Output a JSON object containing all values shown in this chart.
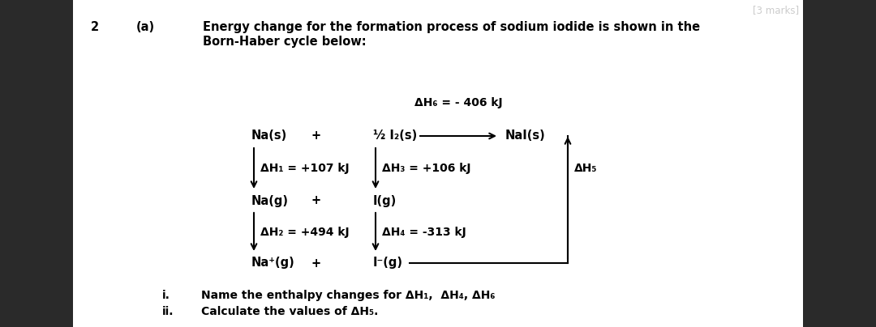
{
  "bg_color": "#f0f0f0",
  "content_bg": "#ffffff",
  "text_color": "#000000",
  "fig_width": 10.8,
  "fig_height": 4.04,
  "question_number": "2",
  "part_label": "(a)",
  "title_line1": "Energy change for the formation process of sodium iodide is shown in the",
  "title_line2": "Born-Haber cycle below:",
  "dh6_label": "ΔH₆ = - 406 kJ",
  "species": {
    "Na_s": "Na(s)",
    "half_I2_s": "½ I₂(s)",
    "NaI_s": "NaI(s)",
    "Na_g": "Na(g)",
    "I_g": "I(g)",
    "Na_plus_g": "Na⁺(g)",
    "I_minus_g": "I⁻(g)"
  },
  "dh_labels": {
    "dh1": "ΔH₁ = +107 kJ",
    "dh2": "ΔH₂ = +494 kJ",
    "dh3": "ΔH₃ = +106 kJ",
    "dh4": "ΔH₄ = -313 kJ",
    "dh5": "ΔH₅"
  },
  "q_i": "i.",
  "q_ii": "ii.",
  "q_i_text": "Name the enthalpy changes for ΔH₁,  ΔH₄, ΔH₆",
  "q_ii_text": "Calculate the values of ΔH₅.",
  "marks_label": "[3 marks]"
}
